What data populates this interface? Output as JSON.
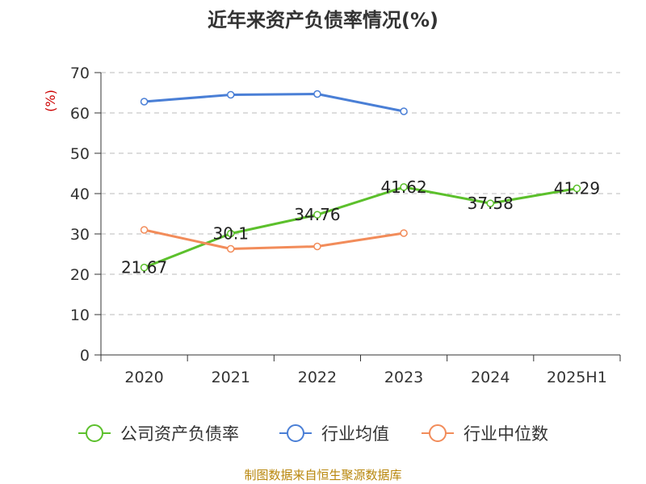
{
  "chart_data": {
    "type": "line",
    "title": "近年来资产负债率情况(%)",
    "xlabel": "",
    "ylabel": "(%)",
    "categories": [
      "2020",
      "2021",
      "2022",
      "2023",
      "2024",
      "2025H1"
    ],
    "ylim": [
      0,
      70
    ],
    "yticks": [
      0,
      10,
      20,
      30,
      40,
      50,
      60,
      70
    ],
    "grid": true,
    "legend_position": "bottom",
    "series": [
      {
        "name": "公司资产负债率",
        "color": "#5cc02c",
        "values": [
          21.67,
          30.1,
          34.76,
          41.62,
          37.58,
          41.29
        ],
        "labels": [
          "21.67",
          "30.1",
          "34.76",
          "41.62",
          "37.58",
          "41.29"
        ],
        "show_labels": true
      },
      {
        "name": "行业均值",
        "color": "#4a7fd6",
        "values": [
          62.8,
          64.5,
          64.7,
          60.4,
          null,
          null
        ],
        "show_labels": false
      },
      {
        "name": "行业中位数",
        "color": "#f28c5a",
        "values": [
          31.0,
          26.3,
          26.9,
          30.2,
          null,
          null
        ],
        "show_labels": false
      }
    ],
    "source": "制图数据来自恒生聚源数据库"
  }
}
